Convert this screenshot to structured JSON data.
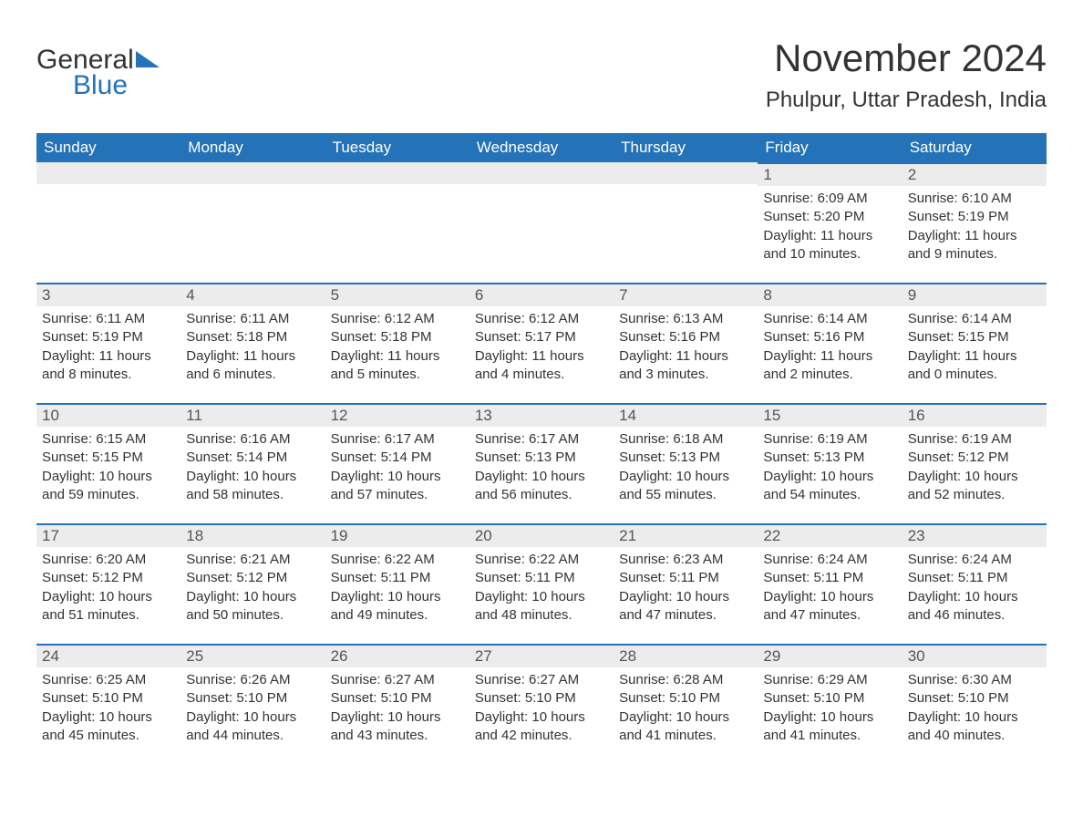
{
  "brand": {
    "general": "General",
    "blue": "Blue",
    "logo_color": "#2472b8"
  },
  "title": "November 2024",
  "location": "Phulpur, Uttar Pradesh, India",
  "colors": {
    "header_bg": "#2472b8",
    "header_text": "#ffffff",
    "dayhead_bg": "#ececec",
    "rule": "#2472b8",
    "text": "#333333",
    "page_bg": "#ffffff"
  },
  "daysOfWeek": [
    "Sunday",
    "Monday",
    "Tuesday",
    "Wednesday",
    "Thursday",
    "Friday",
    "Saturday"
  ],
  "labels": {
    "sunrise": "Sunrise: ",
    "sunset": "Sunset: ",
    "daylight": "Daylight: "
  },
  "weeks": [
    [
      null,
      null,
      null,
      null,
      null,
      {
        "n": "1",
        "sunrise": "6:09 AM",
        "sunset": "5:20 PM",
        "daylight": "11 hours and 10 minutes."
      },
      {
        "n": "2",
        "sunrise": "6:10 AM",
        "sunset": "5:19 PM",
        "daylight": "11 hours and 9 minutes."
      }
    ],
    [
      {
        "n": "3",
        "sunrise": "6:11 AM",
        "sunset": "5:19 PM",
        "daylight": "11 hours and 8 minutes."
      },
      {
        "n": "4",
        "sunrise": "6:11 AM",
        "sunset": "5:18 PM",
        "daylight": "11 hours and 6 minutes."
      },
      {
        "n": "5",
        "sunrise": "6:12 AM",
        "sunset": "5:18 PM",
        "daylight": "11 hours and 5 minutes."
      },
      {
        "n": "6",
        "sunrise": "6:12 AM",
        "sunset": "5:17 PM",
        "daylight": "11 hours and 4 minutes."
      },
      {
        "n": "7",
        "sunrise": "6:13 AM",
        "sunset": "5:16 PM",
        "daylight": "11 hours and 3 minutes."
      },
      {
        "n": "8",
        "sunrise": "6:14 AM",
        "sunset": "5:16 PM",
        "daylight": "11 hours and 2 minutes."
      },
      {
        "n": "9",
        "sunrise": "6:14 AM",
        "sunset": "5:15 PM",
        "daylight": "11 hours and 0 minutes."
      }
    ],
    [
      {
        "n": "10",
        "sunrise": "6:15 AM",
        "sunset": "5:15 PM",
        "daylight": "10 hours and 59 minutes."
      },
      {
        "n": "11",
        "sunrise": "6:16 AM",
        "sunset": "5:14 PM",
        "daylight": "10 hours and 58 minutes."
      },
      {
        "n": "12",
        "sunrise": "6:17 AM",
        "sunset": "5:14 PM",
        "daylight": "10 hours and 57 minutes."
      },
      {
        "n": "13",
        "sunrise": "6:17 AM",
        "sunset": "5:13 PM",
        "daylight": "10 hours and 56 minutes."
      },
      {
        "n": "14",
        "sunrise": "6:18 AM",
        "sunset": "5:13 PM",
        "daylight": "10 hours and 55 minutes."
      },
      {
        "n": "15",
        "sunrise": "6:19 AM",
        "sunset": "5:13 PM",
        "daylight": "10 hours and 54 minutes."
      },
      {
        "n": "16",
        "sunrise": "6:19 AM",
        "sunset": "5:12 PM",
        "daylight": "10 hours and 52 minutes."
      }
    ],
    [
      {
        "n": "17",
        "sunrise": "6:20 AM",
        "sunset": "5:12 PM",
        "daylight": "10 hours and 51 minutes."
      },
      {
        "n": "18",
        "sunrise": "6:21 AM",
        "sunset": "5:12 PM",
        "daylight": "10 hours and 50 minutes."
      },
      {
        "n": "19",
        "sunrise": "6:22 AM",
        "sunset": "5:11 PM",
        "daylight": "10 hours and 49 minutes."
      },
      {
        "n": "20",
        "sunrise": "6:22 AM",
        "sunset": "5:11 PM",
        "daylight": "10 hours and 48 minutes."
      },
      {
        "n": "21",
        "sunrise": "6:23 AM",
        "sunset": "5:11 PM",
        "daylight": "10 hours and 47 minutes."
      },
      {
        "n": "22",
        "sunrise": "6:24 AM",
        "sunset": "5:11 PM",
        "daylight": "10 hours and 47 minutes."
      },
      {
        "n": "23",
        "sunrise": "6:24 AM",
        "sunset": "5:11 PM",
        "daylight": "10 hours and 46 minutes."
      }
    ],
    [
      {
        "n": "24",
        "sunrise": "6:25 AM",
        "sunset": "5:10 PM",
        "daylight": "10 hours and 45 minutes."
      },
      {
        "n": "25",
        "sunrise": "6:26 AM",
        "sunset": "5:10 PM",
        "daylight": "10 hours and 44 minutes."
      },
      {
        "n": "26",
        "sunrise": "6:27 AM",
        "sunset": "5:10 PM",
        "daylight": "10 hours and 43 minutes."
      },
      {
        "n": "27",
        "sunrise": "6:27 AM",
        "sunset": "5:10 PM",
        "daylight": "10 hours and 42 minutes."
      },
      {
        "n": "28",
        "sunrise": "6:28 AM",
        "sunset": "5:10 PM",
        "daylight": "10 hours and 41 minutes."
      },
      {
        "n": "29",
        "sunrise": "6:29 AM",
        "sunset": "5:10 PM",
        "daylight": "10 hours and 41 minutes."
      },
      {
        "n": "30",
        "sunrise": "6:30 AM",
        "sunset": "5:10 PM",
        "daylight": "10 hours and 40 minutes."
      }
    ]
  ]
}
